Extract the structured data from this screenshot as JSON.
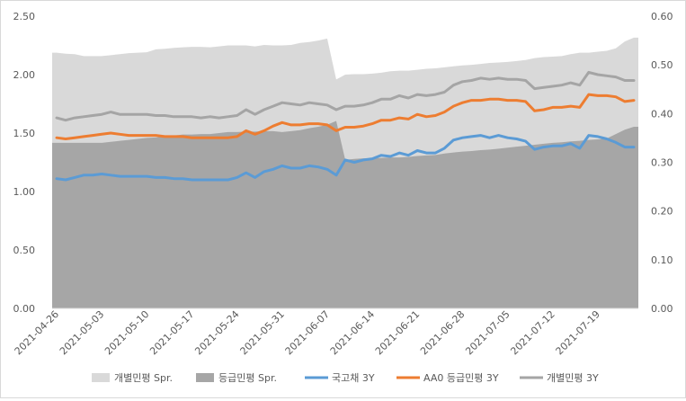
{
  "chart_data": {
    "type": "area",
    "title": "",
    "grid": false,
    "legend_position": "bottom",
    "x_tick_labels": [
      "2021-04-26",
      "2021-05-03",
      "2021-05-10",
      "2021-05-17",
      "2021-05-24",
      "2021-05-31",
      "2021-06-07",
      "2021-06-14",
      "2021-06-21",
      "2021-06-28",
      "2021-07-05",
      "2021-07-12",
      "2021-07-19"
    ],
    "y_left": {
      "lim": [
        0,
        2.5
      ],
      "ticks": [
        "0.00",
        "0.50",
        "1.00",
        "1.50",
        "2.00",
        "2.50"
      ]
    },
    "y_right": {
      "lim": [
        0,
        0.6
      ],
      "ticks": [
        "0.00",
        "0.10",
        "0.20",
        "0.30",
        "0.40",
        "0.50",
        "0.60"
      ]
    },
    "x": [
      "2021-04-26",
      "2021-04-27",
      "2021-04-28",
      "2021-04-29",
      "2021-04-30",
      "2021-05-03",
      "2021-05-04",
      "2021-05-05",
      "2021-05-06",
      "2021-05-07",
      "2021-05-10",
      "2021-05-11",
      "2021-05-12",
      "2021-05-13",
      "2021-05-14",
      "2021-05-17",
      "2021-05-18",
      "2021-05-19",
      "2021-05-20",
      "2021-05-21",
      "2021-05-24",
      "2021-05-25",
      "2021-05-26",
      "2021-05-27",
      "2021-05-28",
      "2021-05-31",
      "2021-06-01",
      "2021-06-02",
      "2021-06-03",
      "2021-06-04",
      "2021-06-07",
      "2021-06-08",
      "2021-06-09",
      "2021-06-10",
      "2021-06-11",
      "2021-06-14",
      "2021-06-15",
      "2021-06-16",
      "2021-06-17",
      "2021-06-18",
      "2021-06-21",
      "2021-06-22",
      "2021-06-23",
      "2021-06-24",
      "2021-06-25",
      "2021-06-28",
      "2021-06-29",
      "2021-06-30",
      "2021-07-01",
      "2021-07-02",
      "2021-07-05",
      "2021-07-06",
      "2021-07-07",
      "2021-07-08",
      "2021-07-09",
      "2021-07-12",
      "2021-07-13",
      "2021-07-14",
      "2021-07-15",
      "2021-07-16",
      "2021-07-19",
      "2021-07-20",
      "2021-07-21",
      "2021-07-22",
      "2021-07-23"
    ],
    "series": [
      {
        "name": "개별민평 Spr.",
        "type": "area",
        "axis": "right",
        "color": "#d9d9d9",
        "values": [
          0.525,
          0.523,
          0.522,
          0.518,
          0.518,
          0.518,
          0.52,
          0.522,
          0.524,
          0.525,
          0.526,
          0.532,
          0.533,
          0.535,
          0.536,
          0.537,
          0.537,
          0.536,
          0.538,
          0.54,
          0.54,
          0.54,
          0.538,
          0.541,
          0.54,
          0.54,
          0.541,
          0.545,
          0.547,
          0.55,
          0.554,
          0.47,
          0.48,
          0.481,
          0.481,
          0.482,
          0.484,
          0.487,
          0.488,
          0.488,
          0.49,
          0.492,
          0.493,
          0.495,
          0.497,
          0.499,
          0.5,
          0.502,
          0.504,
          0.505,
          0.506,
          0.508,
          0.51,
          0.514,
          0.516,
          0.517,
          0.518,
          0.522,
          0.525,
          0.525,
          0.527,
          0.529,
          0.534,
          0.548,
          0.556
        ]
      },
      {
        "name": "등급민평 Spr.",
        "type": "area",
        "axis": "right",
        "color": "#a6a6a6",
        "values": [
          0.34,
          0.34,
          0.34,
          0.34,
          0.34,
          0.34,
          0.342,
          0.344,
          0.346,
          0.348,
          0.35,
          0.351,
          0.353,
          0.355,
          0.357,
          0.357,
          0.358,
          0.358,
          0.36,
          0.362,
          0.362,
          0.363,
          0.363,
          0.364,
          0.364,
          0.362,
          0.364,
          0.366,
          0.37,
          0.373,
          0.377,
          0.385,
          0.305,
          0.307,
          0.308,
          0.308,
          0.309,
          0.31,
          0.31,
          0.311,
          0.313,
          0.314,
          0.315,
          0.318,
          0.32,
          0.322,
          0.323,
          0.325,
          0.326,
          0.328,
          0.33,
          0.332,
          0.334,
          0.336,
          0.338,
          0.34,
          0.341,
          0.343,
          0.344,
          0.346,
          0.347,
          0.349,
          0.358,
          0.367,
          0.373
        ]
      },
      {
        "name": "국고채 3Y",
        "type": "line",
        "axis": "left",
        "color": "#5b9bd5",
        "values": [
          1.11,
          1.1,
          1.12,
          1.14,
          1.14,
          1.15,
          1.14,
          1.13,
          1.13,
          1.13,
          1.13,
          1.12,
          1.12,
          1.11,
          1.11,
          1.1,
          1.1,
          1.1,
          1.1,
          1.1,
          1.12,
          1.16,
          1.12,
          1.17,
          1.19,
          1.22,
          1.2,
          1.2,
          1.22,
          1.21,
          1.19,
          1.14,
          1.27,
          1.25,
          1.27,
          1.28,
          1.31,
          1.3,
          1.33,
          1.31,
          1.35,
          1.33,
          1.33,
          1.37,
          1.44,
          1.46,
          1.47,
          1.48,
          1.46,
          1.48,
          1.46,
          1.45,
          1.43,
          1.36,
          1.38,
          1.39,
          1.39,
          1.41,
          1.37,
          1.48,
          1.47,
          1.45,
          1.42,
          1.38,
          1.38
        ]
      },
      {
        "name": "AA0 등급민평 3Y",
        "type": "line",
        "axis": "left",
        "color": "#ed7d31",
        "values": [
          1.46,
          1.45,
          1.46,
          1.47,
          1.48,
          1.49,
          1.5,
          1.49,
          1.48,
          1.48,
          1.48,
          1.48,
          1.47,
          1.47,
          1.47,
          1.46,
          1.46,
          1.46,
          1.46,
          1.46,
          1.47,
          1.52,
          1.49,
          1.52,
          1.56,
          1.59,
          1.57,
          1.57,
          1.58,
          1.58,
          1.57,
          1.52,
          1.55,
          1.55,
          1.56,
          1.58,
          1.61,
          1.61,
          1.63,
          1.62,
          1.66,
          1.64,
          1.65,
          1.68,
          1.73,
          1.76,
          1.78,
          1.78,
          1.79,
          1.79,
          1.78,
          1.78,
          1.77,
          1.69,
          1.7,
          1.72,
          1.72,
          1.73,
          1.72,
          1.83,
          1.82,
          1.82,
          1.81,
          1.77,
          1.78
        ]
      },
      {
        "name": "개별민평 3Y",
        "type": "line",
        "axis": "left",
        "color": "#a5a5a5",
        "values": [
          1.63,
          1.61,
          1.63,
          1.64,
          1.65,
          1.66,
          1.68,
          1.66,
          1.66,
          1.66,
          1.66,
          1.65,
          1.65,
          1.64,
          1.64,
          1.64,
          1.63,
          1.64,
          1.63,
          1.64,
          1.65,
          1.7,
          1.66,
          1.7,
          1.73,
          1.76,
          1.75,
          1.74,
          1.76,
          1.75,
          1.74,
          1.7,
          1.73,
          1.73,
          1.74,
          1.76,
          1.79,
          1.79,
          1.82,
          1.8,
          1.83,
          1.82,
          1.83,
          1.85,
          1.91,
          1.94,
          1.95,
          1.97,
          1.96,
          1.97,
          1.96,
          1.96,
          1.95,
          1.88,
          1.89,
          1.9,
          1.91,
          1.93,
          1.91,
          2.02,
          2.0,
          1.99,
          1.98,
          1.95,
          1.95
        ]
      }
    ]
  }
}
